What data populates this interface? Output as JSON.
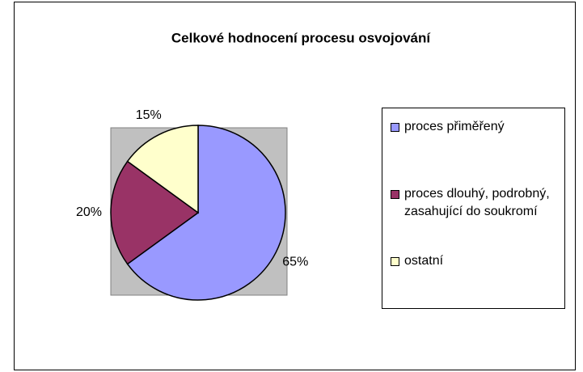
{
  "chart_data": {
    "type": "pie",
    "title": "Celkové hodnocení procesu osvojování",
    "categories": [
      "proces přiměřený",
      "proces dlouhý, podrobný, zasahující do soukromí",
      "ostatní"
    ],
    "values": [
      65,
      20,
      15
    ],
    "value_labels": [
      "65%",
      "20%",
      "15%"
    ],
    "colors": [
      "#9999ff",
      "#993366",
      "#ffffcc"
    ],
    "legend": "right"
  }
}
